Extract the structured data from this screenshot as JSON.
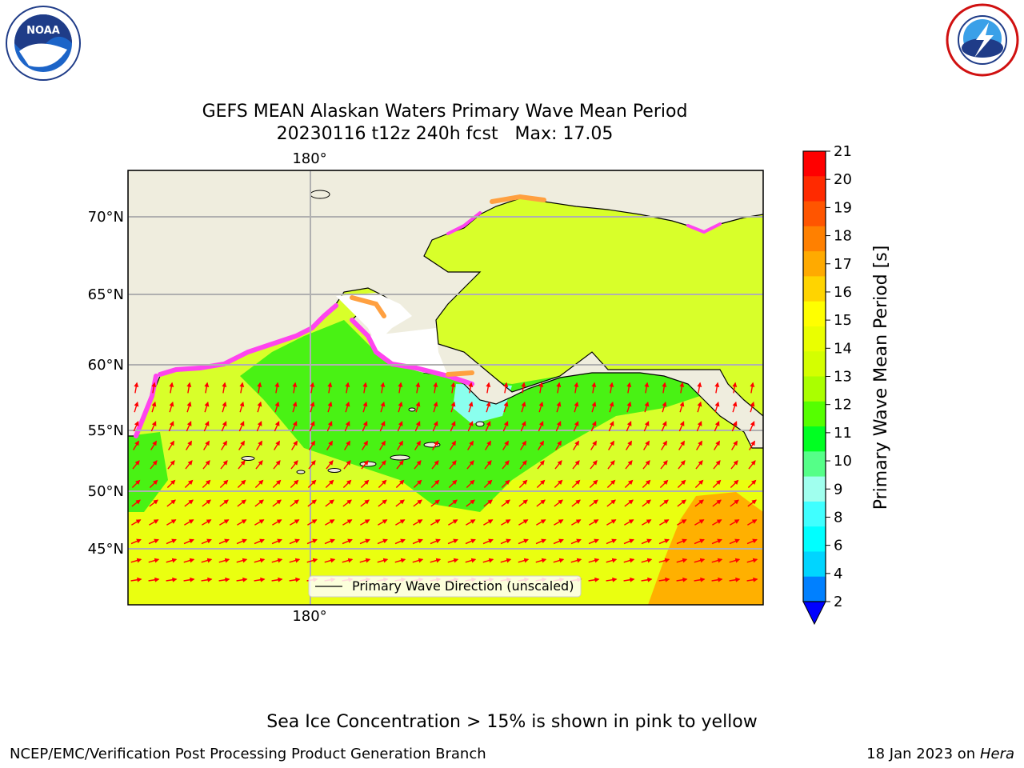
{
  "title": "GEFS MEAN Alaskan Waters Primary Wave Mean Period",
  "subtitle": "20230116 t12z 240h fcst   Max: 17.05",
  "map": {
    "lon_label_top": "180°",
    "lon_label_bottom": "180°",
    "lat_labels": [
      "70°N",
      "65°N",
      "60°N",
      "55°N",
      "50°N",
      "45°N"
    ],
    "legend_label": "Primary Wave Direction (unscaled)",
    "arrow_color": "#ff0000",
    "land_color": "#efedde"
  },
  "colorbar": {
    "label": "Primary Wave Mean Period [s]",
    "ticks": [
      "21",
      "20",
      "19",
      "18",
      "17",
      "16",
      "15",
      "14",
      "13",
      "12",
      "11",
      "10",
      "9",
      "8",
      "6",
      "4",
      "2"
    ],
    "colors": [
      "#ff0000",
      "#ff2a00",
      "#ff5500",
      "#ff8000",
      "#ffaa00",
      "#ffd400",
      "#ffff00",
      "#eaff00",
      "#d4ff00",
      "#aaff00",
      "#55ff00",
      "#00ff22",
      "#55ff88",
      "#a0ffee",
      "#40ffff",
      "#00ffff",
      "#00d5ff",
      "#0080ff"
    ],
    "underflow_color": "#0000ff"
  },
  "ice_note": "Sea Ice Concentration > 15% is shown in pink to yellow",
  "credit_left": "NCEP/EMC/Verification Post Processing Product Generation Branch",
  "credit_right_prefix": "18 Jan 2023 on ",
  "credit_right_host": "Hera"
}
